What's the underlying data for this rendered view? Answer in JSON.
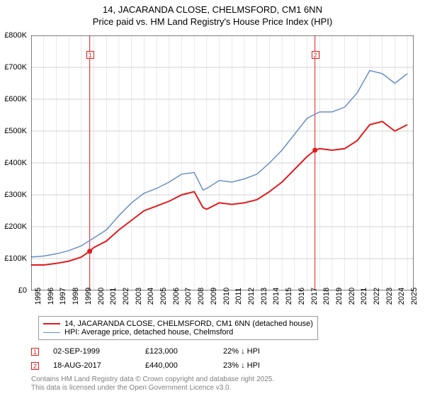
{
  "title_line1": "14, JACARANDA CLOSE, CHELMSFORD, CM1 6NN",
  "title_line2": "Price paid vs. HM Land Registry's House Price Index (HPI)",
  "chart": {
    "type": "line",
    "background_color": "#ffffff",
    "grid_color": "#d3d3d3",
    "axis_color": "#000000",
    "xlim": [
      1995,
      2025.5
    ],
    "ylim": [
      0,
      800000
    ],
    "ytick_step": 100000,
    "ytick_labels": [
      "£0",
      "£100K",
      "£200K",
      "£300K",
      "£400K",
      "£500K",
      "£600K",
      "£700K",
      "£800K"
    ],
    "xticks": [
      1995,
      1996,
      1997,
      1998,
      1999,
      2000,
      2001,
      2002,
      2003,
      2004,
      2005,
      2006,
      2007,
      2008,
      2009,
      2010,
      2011,
      2012,
      2013,
      2014,
      2015,
      2016,
      2017,
      2018,
      2019,
      2020,
      2021,
      2022,
      2023,
      2024,
      2025
    ],
    "label_fontsize": 11,
    "series": [
      {
        "name": "price_paid",
        "label": "14, JACARANDA CLOSE, CHELMSFORD, CM1 6NN (detached house)",
        "color": "#e31a1c",
        "line_width": 2,
        "x": [
          1995,
          1996,
          1997,
          1998,
          1999,
          1999.67,
          2000,
          2001,
          2002,
          2003,
          2004,
          2005,
          2006,
          2007,
          2008,
          2008.7,
          2009,
          2010,
          2011,
          2012,
          2013,
          2014,
          2015,
          2016,
          2017,
          2017.63,
          2018,
          2019,
          2020,
          2021,
          2022,
          2023,
          2024,
          2025
        ],
        "y": [
          80000,
          80000,
          85000,
          92000,
          105000,
          123000,
          135000,
          155000,
          190000,
          220000,
          250000,
          265000,
          280000,
          300000,
          310000,
          260000,
          255000,
          275000,
          270000,
          275000,
          285000,
          310000,
          340000,
          380000,
          420000,
          440000,
          445000,
          440000,
          445000,
          470000,
          520000,
          530000,
          500000,
          520000
        ]
      },
      {
        "name": "hpi",
        "label": "HPI: Average price, detached house, Chelmsford",
        "color": "#6a8fc6",
        "line_width": 1.5,
        "x": [
          1995,
          1996,
          1997,
          1998,
          1999,
          2000,
          2001,
          2002,
          2003,
          2004,
          2005,
          2006,
          2007,
          2008,
          2008.7,
          2009,
          2010,
          2011,
          2012,
          2013,
          2014,
          2015,
          2016,
          2017,
          2018,
          2019,
          2020,
          2021,
          2022,
          2023,
          2024,
          2025
        ],
        "y": [
          105000,
          108000,
          115000,
          125000,
          140000,
          165000,
          190000,
          235000,
          275000,
          305000,
          320000,
          340000,
          365000,
          370000,
          315000,
          320000,
          345000,
          340000,
          350000,
          365000,
          400000,
          440000,
          490000,
          540000,
          560000,
          560000,
          575000,
          620000,
          690000,
          680000,
          650000,
          680000
        ]
      }
    ],
    "sale_markers": [
      {
        "n": "1",
        "x": 1999.67,
        "color": "#e31a1c",
        "point_y": 123000
      },
      {
        "n": "2",
        "x": 2017.63,
        "color": "#e31a1c",
        "point_y": 440000
      }
    ]
  },
  "legend": {
    "items": [
      {
        "color": "#e31a1c",
        "width": 2,
        "label": "14, JACARANDA CLOSE, CHELMSFORD, CM1 6NN (detached house)"
      },
      {
        "color": "#6a8fc6",
        "width": 1.5,
        "label": "HPI: Average price, detached house, Chelmsford"
      }
    ]
  },
  "sales": [
    {
      "n": "1",
      "color": "#e31a1c",
      "date": "02-SEP-1999",
      "price": "£123,000",
      "delta": "22% ↓ HPI"
    },
    {
      "n": "2",
      "color": "#e31a1c",
      "date": "18-AUG-2017",
      "price": "£440,000",
      "delta": "23% ↓ HPI"
    }
  ],
  "attribution_line1": "Contains HM Land Registry data © Crown copyright and database right 2025.",
  "attribution_line2": "This data is licensed under the Open Government Licence v3.0."
}
